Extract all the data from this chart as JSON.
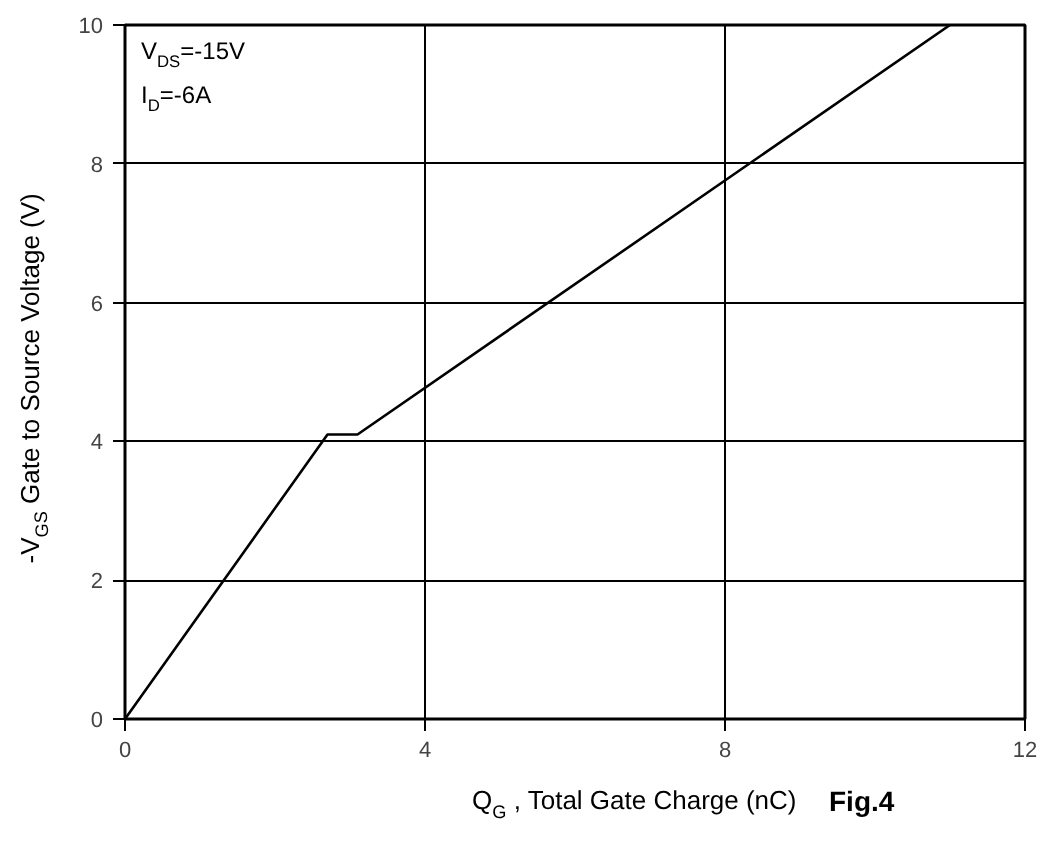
{
  "chart_data": {
    "type": "line",
    "xlabel": "Q$_{G}$ , Total Gate Charge (nC)",
    "ylabel": "-V$_{GS}$ Gate to Source Voltage (V)",
    "annotations": [
      "V$_{DS}$=-15V",
      "I$_{D}$=-6A",
      "Fig.4"
    ],
    "x": [
      0,
      2.7,
      3.1,
      11
    ],
    "series": [
      {
        "color": "#000000",
        "values": [
          0,
          4.1,
          4.1,
          10
        ]
      }
    ],
    "xlim": [
      0,
      12
    ],
    "xticks": [
      0,
      4,
      8,
      12
    ],
    "ylim": [
      0,
      10
    ],
    "yticks": [
      0,
      2,
      4,
      6,
      8,
      10
    ],
    "grid": true,
    "marker": "none",
    "line_style": "solid"
  }
}
